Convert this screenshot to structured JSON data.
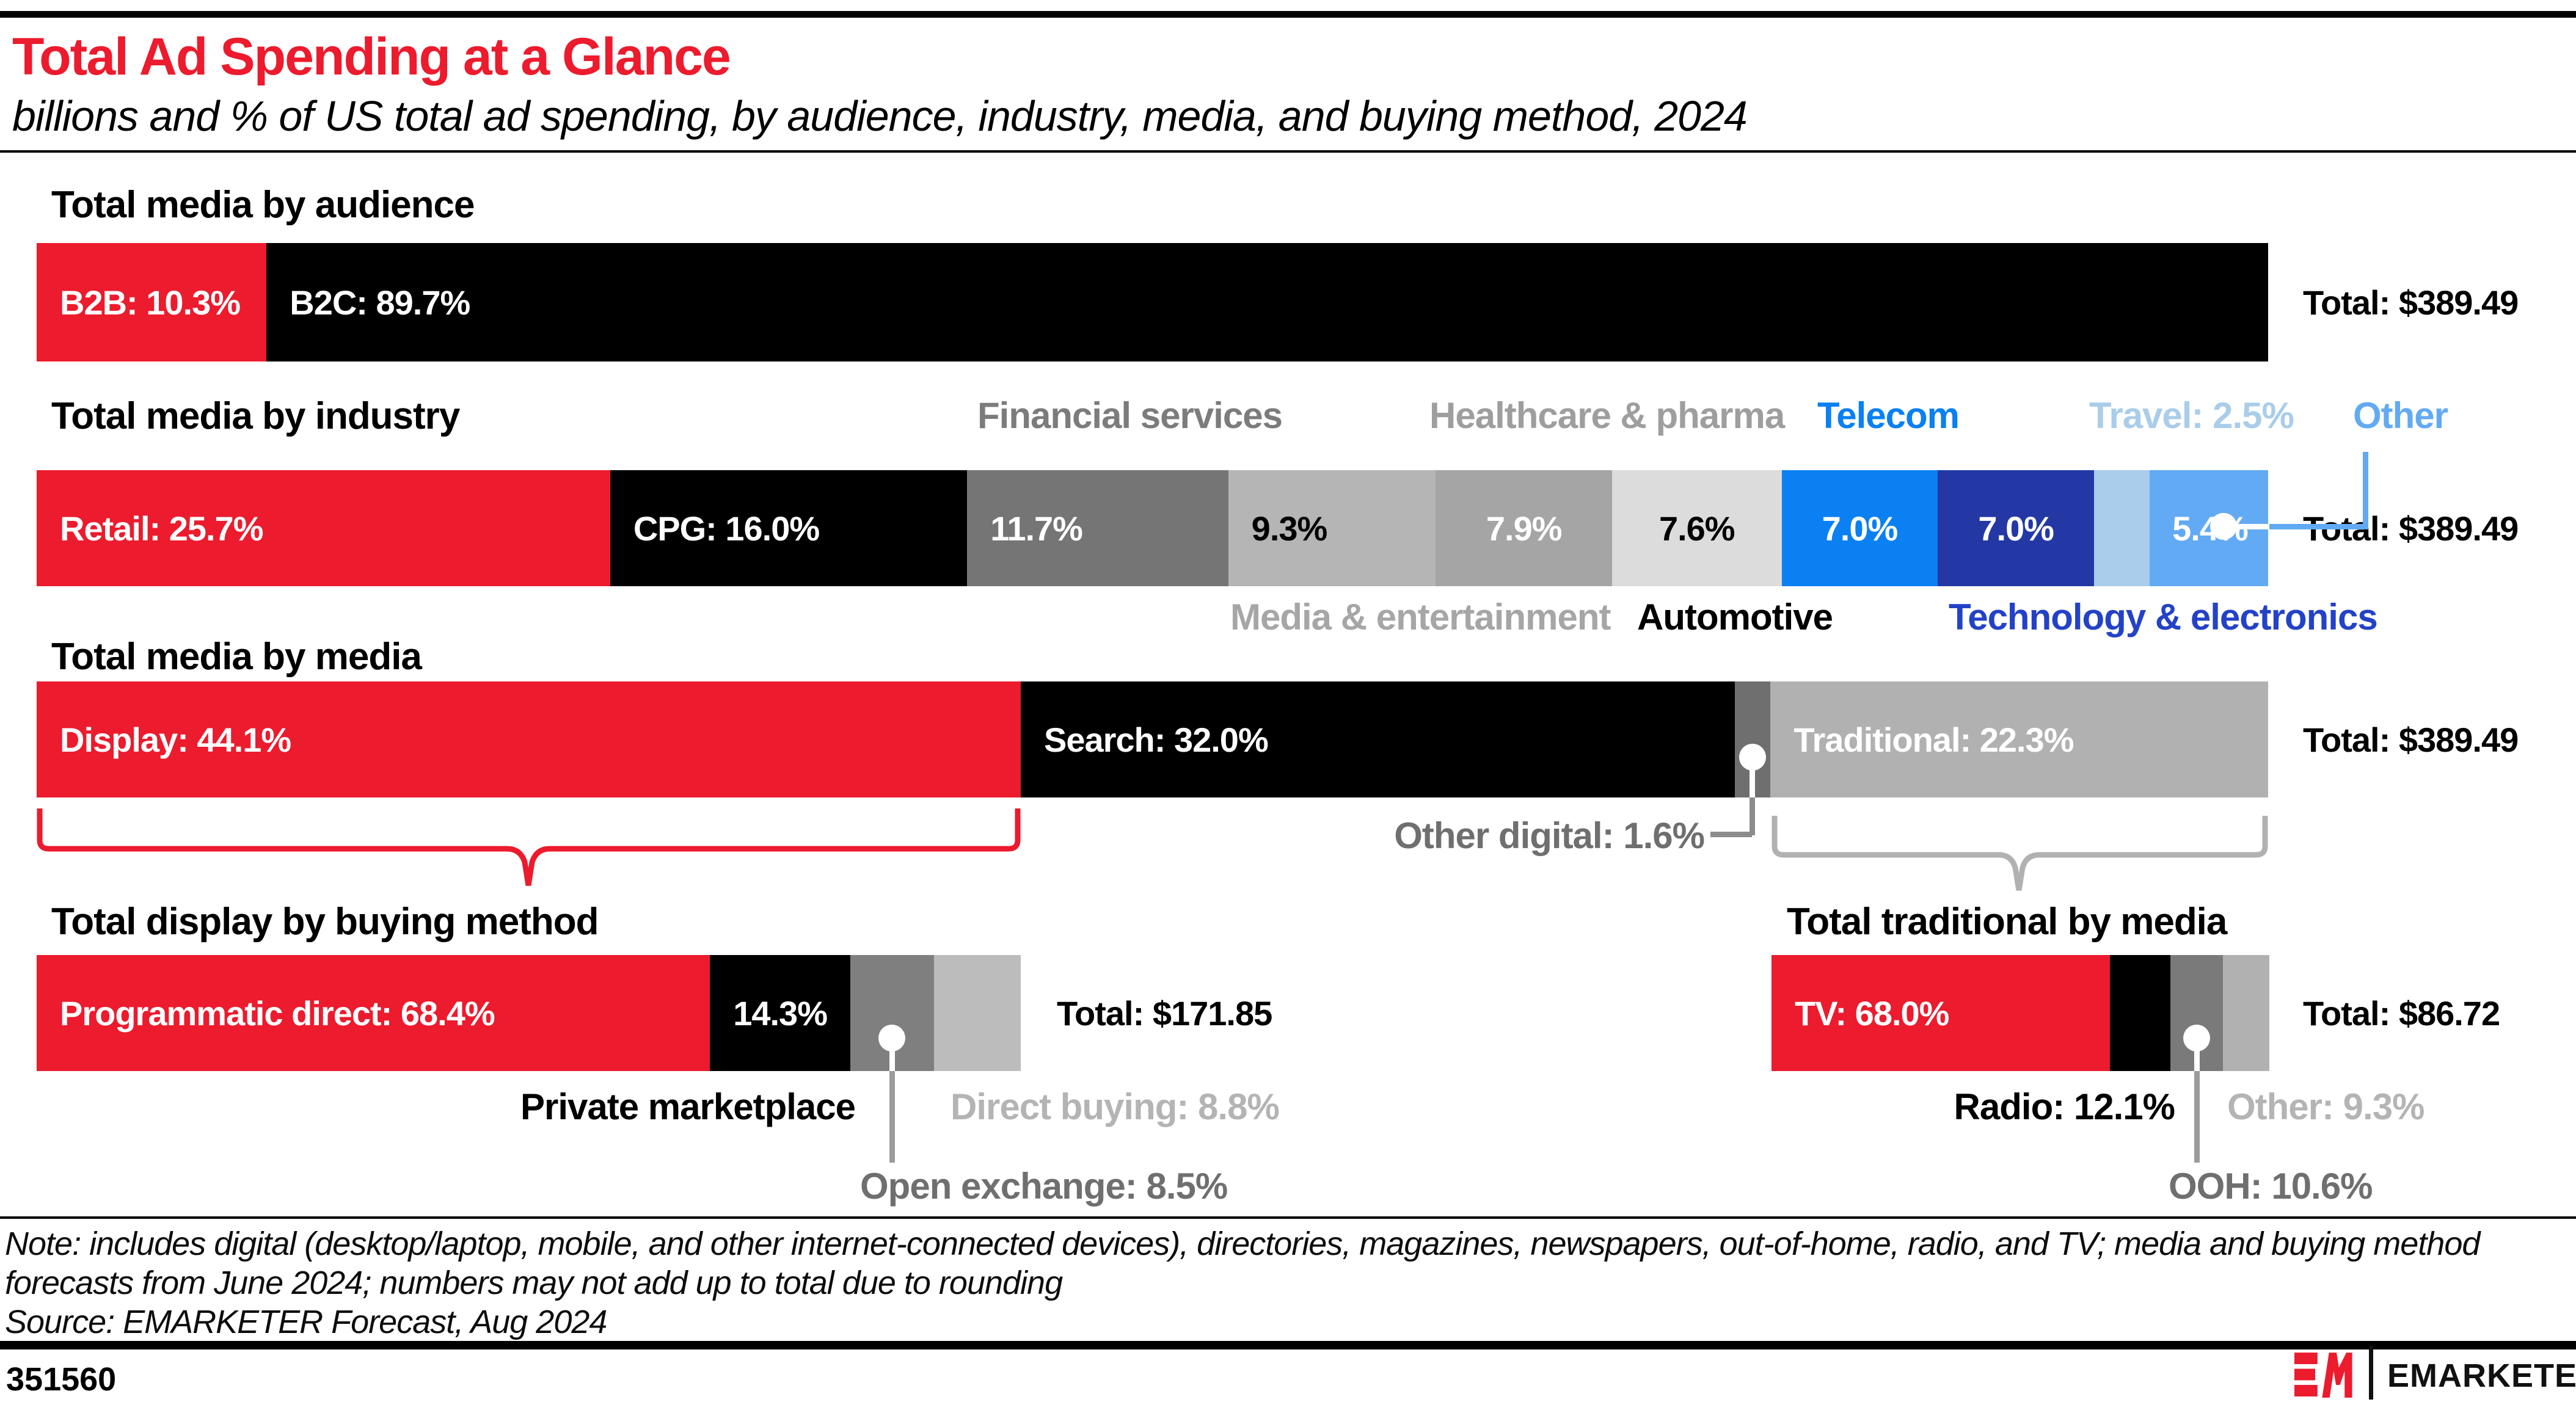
{
  "colors": {
    "brand_red": "#ec1b2d",
    "telecom_blue": "#0a80f2",
    "tech_blue": "#2338a5",
    "travel_blue": "#a9cdea",
    "other_blue": "#62aaf3"
  },
  "header": {
    "title": "Total Ad Spending at a Glance",
    "subtitle": "billions and % of US total ad spending, by audience, industry, media, and buying method, 2024"
  },
  "bars": {
    "audience": {
      "heading": "Total media by audience",
      "total_label": "Total: $389.49",
      "segments": [
        {
          "name": "b2b",
          "label": "B2B: 10.3%",
          "pct": 10.3,
          "color": "#ec1b2d",
          "text_color": "#ffffff",
          "align": "left"
        },
        {
          "name": "b2c",
          "label": "B2C: 89.7%",
          "pct": 89.7,
          "color": "#000000",
          "text_color": "#ffffff",
          "align": "left"
        }
      ]
    },
    "industry": {
      "heading": "Total media by industry",
      "total_label": "Total: $389.49",
      "above_labels": [
        {
          "text": "Financial services",
          "color": "#7c7c7c"
        },
        {
          "text": "Healthcare & pharma",
          "color": "#9e9e9e"
        },
        {
          "text": "Telecom",
          "color": "#0a80f2"
        },
        {
          "text": "Travel: 2.5%",
          "color": "#a9cdea"
        },
        {
          "text": "Other",
          "color": "#62aaf3"
        }
      ],
      "below_labels": [
        {
          "text": "Media & entertainment",
          "color": "#a6a6a6"
        },
        {
          "text": "Automotive",
          "color": "#000000"
        },
        {
          "text": "Technology & electronics",
          "color": "#2342c8"
        }
      ],
      "segments": [
        {
          "name": "retail",
          "label": "Retail: 25.7%",
          "pct": 25.7,
          "color": "#ec1b2d",
          "text_color": "#ffffff",
          "align": "left"
        },
        {
          "name": "cpg",
          "label": "CPG: 16.0%",
          "pct": 16.0,
          "color": "#000000",
          "text_color": "#ffffff",
          "align": "left"
        },
        {
          "name": "financial-services",
          "label": "11.7%",
          "pct": 11.7,
          "color": "#757575",
          "text_color": "#ffffff",
          "align": "left"
        },
        {
          "name": "media-entertainment",
          "label": "9.3%",
          "pct": 9.3,
          "color": "#b5b5b5",
          "text_color": "#000000",
          "align": "left"
        },
        {
          "name": "healthcare-pharma",
          "label": "7.9%",
          "pct": 7.9,
          "color": "#a5a5a5",
          "text_color": "#ffffff",
          "align": "center"
        },
        {
          "name": "automotive",
          "label": "7.6%",
          "pct": 7.6,
          "color": "#dcdcdc",
          "text_color": "#000000",
          "align": "center"
        },
        {
          "name": "telecom",
          "label": "7.0%",
          "pct": 7.0,
          "color": "#0a80f2",
          "text_color": "#ffffff",
          "align": "center"
        },
        {
          "name": "technology-electronics",
          "label": "7.0%",
          "pct": 7.0,
          "color": "#2338a5",
          "text_color": "#ffffff",
          "align": "center"
        },
        {
          "name": "travel",
          "label": "",
          "pct": 2.5,
          "color": "#a9cdea",
          "text_color": "#ffffff",
          "align": "center"
        },
        {
          "name": "other",
          "label": "5.4%",
          "pct": 5.4,
          "color": "#62aaf3",
          "text_color": "#ffffff",
          "align": "center"
        }
      ]
    },
    "media": {
      "heading": "Total media by media",
      "total_label": "Total: $389.49",
      "callout_label": "Other digital: 1.6%",
      "segments": [
        {
          "name": "display",
          "label": "Display: 44.1%",
          "pct": 44.1,
          "color": "#ec1b2d",
          "text_color": "#ffffff",
          "align": "left"
        },
        {
          "name": "search",
          "label": "Search: 32.0%",
          "pct": 32.0,
          "color": "#000000",
          "text_color": "#ffffff",
          "align": "left"
        },
        {
          "name": "other-digital",
          "label": "",
          "pct": 1.6,
          "color": "#6f6f6f",
          "text_color": "#ffffff",
          "align": "center"
        },
        {
          "name": "traditional",
          "label": "Traditional: 22.3%",
          "pct": 22.3,
          "color": "#b1b1b1",
          "text_color": "#ffffff",
          "align": "left"
        }
      ]
    },
    "display": {
      "heading": "Total display by buying method",
      "total_label": "Total: $171.85",
      "below_labels": [
        {
          "text": "Private marketplace",
          "color": "#000000"
        },
        {
          "text": "Direct buying: 8.8%",
          "color": "#b4b4b4"
        }
      ],
      "callout_label": "Open exchange: 8.5%",
      "segments": [
        {
          "name": "programmatic-direct",
          "label": "Programmatic direct: 68.4%",
          "pct": 68.4,
          "color": "#ec1b2d",
          "text_color": "#ffffff",
          "align": "left"
        },
        {
          "name": "private-marketplace",
          "label": "14.3%",
          "pct": 14.3,
          "color": "#000000",
          "text_color": "#ffffff",
          "align": "center"
        },
        {
          "name": "open-exchange",
          "label": "",
          "pct": 8.5,
          "color": "#7f7f7f",
          "text_color": "#ffffff",
          "align": "center"
        },
        {
          "name": "direct-buying",
          "label": "",
          "pct": 8.8,
          "color": "#bcbcbc",
          "text_color": "#000000",
          "align": "center"
        }
      ]
    },
    "traditional": {
      "heading": "Total traditional by media",
      "total_label": "Total: $86.72",
      "below_labels": [
        {
          "text": "Radio: 12.1%",
          "color": "#000000"
        },
        {
          "text": "Other: 9.3%",
          "color": "#b4b4b4"
        }
      ],
      "callout_label": "OOH: 10.6%",
      "segments": [
        {
          "name": "tv",
          "label": "TV: 68.0%",
          "pct": 68.0,
          "color": "#ec1b2d",
          "text_color": "#ffffff",
          "align": "left"
        },
        {
          "name": "radio",
          "label": "",
          "pct": 12.1,
          "color": "#000000",
          "text_color": "#ffffff",
          "align": "center"
        },
        {
          "name": "ooh",
          "label": "",
          "pct": 10.6,
          "color": "#7a7a7a",
          "text_color": "#ffffff",
          "align": "center"
        },
        {
          "name": "other",
          "label": "",
          "pct": 9.3,
          "color": "#b1b1b1",
          "text_color": "#000000",
          "align": "center"
        }
      ]
    }
  },
  "footnote": {
    "line1": "Note: includes digital (desktop/laptop, mobile, and other internet-connected devices), directories, magazines, newspapers, out-of-home, radio, and TV; media and buying method",
    "line2": "forecasts from June 2024; numbers may not add up to total due to rounding",
    "source": "Source: EMARKETER Forecast, Aug 2024"
  },
  "footer": {
    "chart_id": "351560",
    "brand": "EMARKETER"
  },
  "chart_data": [
    {
      "type": "bar",
      "orientation": "horizontal-stacked",
      "title": "Total media by audience",
      "total_usd_billions": 389.49,
      "total_label": "Total: $389.49",
      "unit": "% of US total ad spending",
      "categories": [
        "B2B",
        "B2C"
      ],
      "values": [
        10.3,
        89.7
      ]
    },
    {
      "type": "bar",
      "orientation": "horizontal-stacked",
      "title": "Total media by industry",
      "total_usd_billions": 389.49,
      "total_label": "Total: $389.49",
      "unit": "% of US total ad spending",
      "categories": [
        "Retail",
        "CPG",
        "Financial services",
        "Media & entertainment",
        "Healthcare & pharma",
        "Automotive",
        "Telecom",
        "Technology & electronics",
        "Travel",
        "Other"
      ],
      "values": [
        25.7,
        16.0,
        11.7,
        9.3,
        7.9,
        7.6,
        7.0,
        7.0,
        2.5,
        5.4
      ]
    },
    {
      "type": "bar",
      "orientation": "horizontal-stacked",
      "title": "Total media by media",
      "total_usd_billions": 389.49,
      "total_label": "Total: $389.49",
      "unit": "% of US total ad spending",
      "categories": [
        "Display",
        "Search",
        "Other digital",
        "Traditional"
      ],
      "values": [
        44.1,
        32.0,
        1.6,
        22.3
      ]
    },
    {
      "type": "bar",
      "orientation": "horizontal-stacked",
      "title": "Total display by buying method",
      "total_usd_billions": 171.85,
      "total_label": "Total: $171.85",
      "unit": "% of total display ad spending",
      "categories": [
        "Programmatic direct",
        "Private marketplace",
        "Open exchange",
        "Direct buying"
      ],
      "values": [
        68.4,
        14.3,
        8.5,
        8.8
      ]
    },
    {
      "type": "bar",
      "orientation": "horizontal-stacked",
      "title": "Total traditional by media",
      "total_usd_billions": 86.72,
      "total_label": "Total: $86.72",
      "unit": "% of total traditional ad spending",
      "categories": [
        "TV",
        "Radio",
        "OOH",
        "Other"
      ],
      "values": [
        68.0,
        12.1,
        10.6,
        9.3
      ]
    }
  ]
}
